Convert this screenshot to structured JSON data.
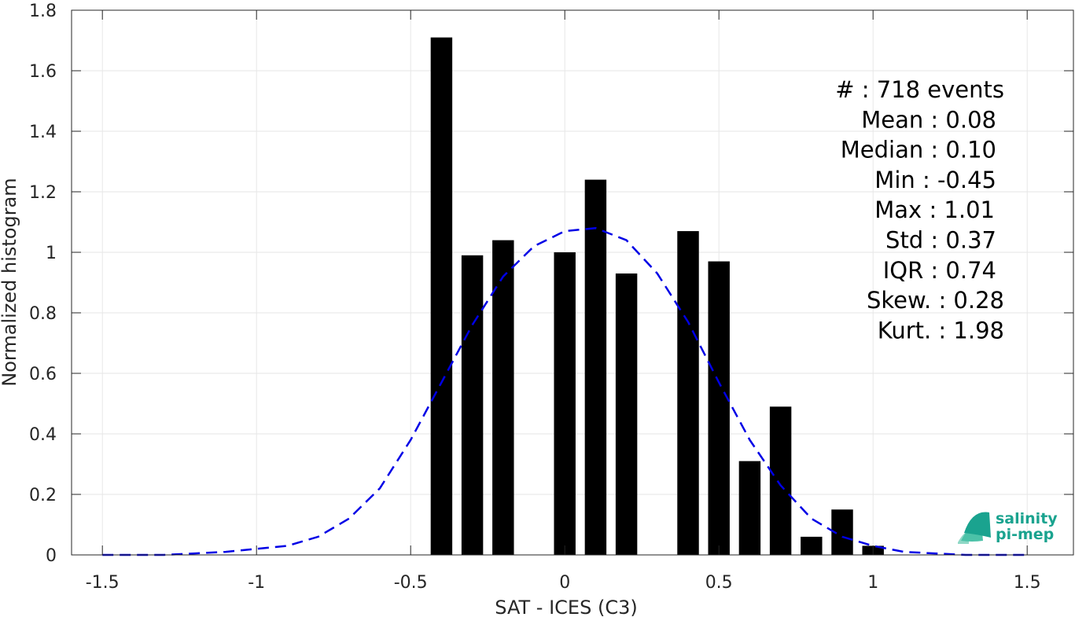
{
  "chart_data": {
    "type": "bar",
    "xlabel": "SAT - ICES (C3)",
    "ylabel": "Normalized histogram",
    "xlim": [
      -1.6,
      1.65
    ],
    "ylim": [
      0,
      1.8
    ],
    "grid": true,
    "x_ticks": [
      -1.5,
      -1,
      -0.5,
      0,
      0.5,
      1,
      1.5
    ],
    "x_tick_labels": [
      "-1.5",
      "-1",
      "-0.5",
      "0",
      "0.5",
      "1",
      "1.5"
    ],
    "y_ticks": [
      0,
      0.2,
      0.4,
      0.6,
      0.8,
      1,
      1.2,
      1.4,
      1.6,
      1.8
    ],
    "y_tick_labels": [
      "0",
      "0.2",
      "0.4",
      "0.6",
      "0.8",
      "1",
      "1.2",
      "1.4",
      "1.6",
      "1.8"
    ],
    "bar_width": 0.07,
    "bars": {
      "x": [
        -0.4,
        -0.3,
        -0.2,
        0.0,
        0.1,
        0.2,
        0.4,
        0.5,
        0.6,
        0.7,
        0.8,
        0.9,
        1.0
      ],
      "values": [
        1.71,
        0.99,
        1.04,
        1.0,
        1.24,
        0.93,
        1.07,
        0.97,
        0.31,
        0.49,
        0.06,
        0.15,
        0.03
      ],
      "color": "#000000"
    },
    "fit_curve": {
      "style": "dashed",
      "color": "#0000e6",
      "x": [
        -1.5,
        -1.4,
        -1.3,
        -1.2,
        -1.1,
        -1.0,
        -0.9,
        -0.8,
        -0.7,
        -0.6,
        -0.5,
        -0.4,
        -0.3,
        -0.2,
        -0.1,
        0.0,
        0.1,
        0.2,
        0.3,
        0.4,
        0.5,
        0.6,
        0.7,
        0.8,
        0.9,
        1.0,
        1.1,
        1.2,
        1.3,
        1.4,
        1.5
      ],
      "y": [
        0.0,
        0.0,
        0.0,
        0.005,
        0.01,
        0.02,
        0.03,
        0.06,
        0.12,
        0.22,
        0.38,
        0.57,
        0.76,
        0.92,
        1.02,
        1.07,
        1.08,
        1.04,
        0.93,
        0.77,
        0.57,
        0.38,
        0.23,
        0.12,
        0.06,
        0.03,
        0.01,
        0.005,
        0.0,
        0.0,
        0.0
      ]
    },
    "stats": [
      {
        "label": "#  : 718 events"
      },
      {
        "label": "Mean : 0.08"
      },
      {
        "label": "Median : 0.10"
      },
      {
        "label": "Min : -0.45"
      },
      {
        "label": "Max : 1.01"
      },
      {
        "label": "Std : 0.37"
      },
      {
        "label": "IQR : 0.74"
      },
      {
        "label": "Skew. : 0.28"
      },
      {
        "label": "Kurt. : 1.98"
      }
    ]
  },
  "logo": {
    "line1": "salinity",
    "line2": "pi-mep",
    "color": "#1aa38f"
  }
}
